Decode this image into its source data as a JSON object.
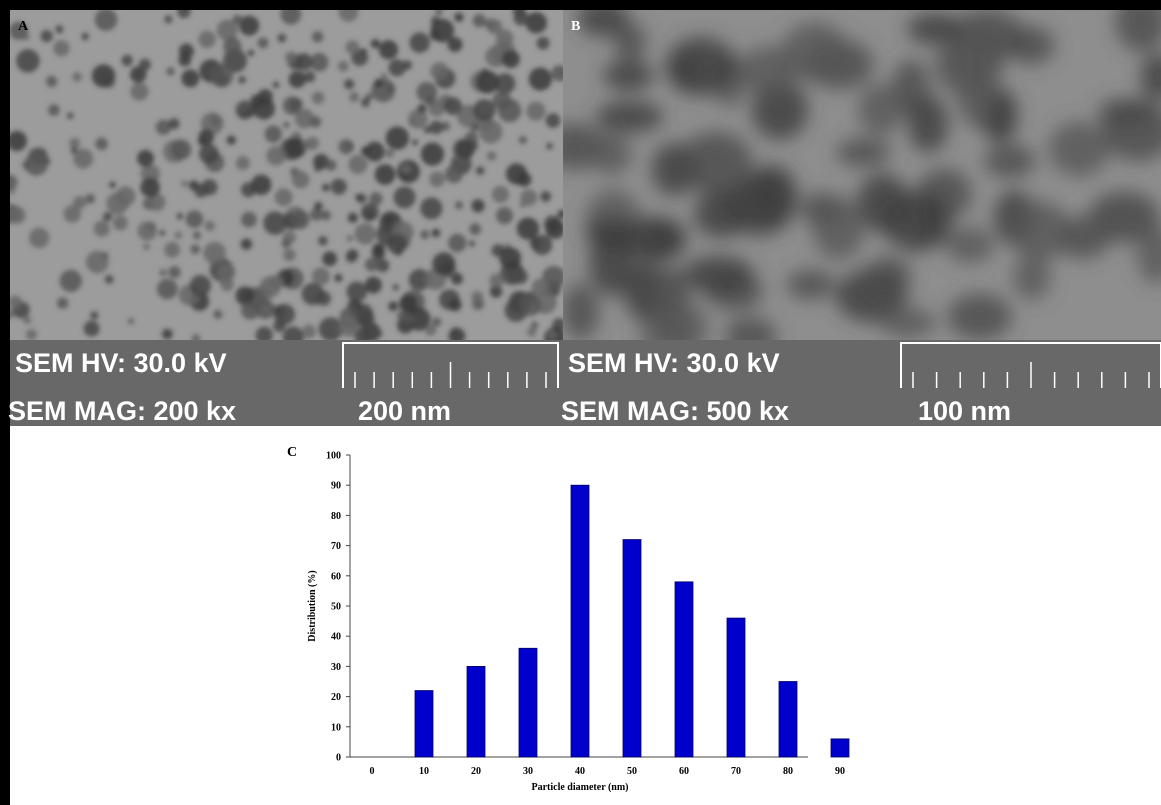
{
  "panels": [
    {
      "label": "A",
      "hv": "SEM HV: 30.0 kV",
      "mag": "SEM MAG: 200 kx",
      "scale": "200 nm"
    },
    {
      "label": "B",
      "hv": "SEM HV: 30.0 kV",
      "mag": "SEM MAG: 500 kx",
      "scale": "100 nm"
    }
  ],
  "chart_data": {
    "type": "bar",
    "panel_label": "C",
    "x_label": "Particle diameter (nm)",
    "y_label": "Distribution (%)",
    "categories": [
      "0",
      "10",
      "20",
      "30",
      "40",
      "50",
      "60",
      "70",
      "80",
      "90"
    ],
    "values": [
      0,
      22,
      30,
      36,
      90,
      72,
      58,
      46,
      25,
      6
    ],
    "color": "#0000cc",
    "ylim": [
      0,
      100
    ],
    "yticks": [
      0,
      10,
      20,
      30,
      40,
      50,
      60,
      70,
      80,
      90,
      100
    ],
    "grid": false
  }
}
